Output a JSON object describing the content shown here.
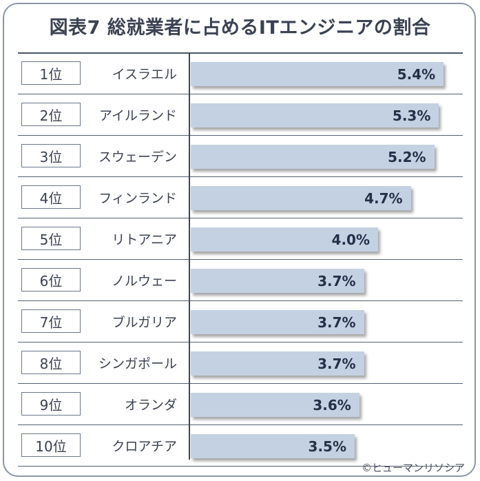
{
  "title": "図表7 総就業者に占めるITエンジニアの割合",
  "credit": "©ヒューマンリソシア",
  "chart_data": {
    "type": "bar",
    "orientation": "horizontal",
    "title": "図表7 総就業者に占めるITエンジニアの割合",
    "unit": "%",
    "xlim": [
      0,
      6.2
    ],
    "grid": false,
    "ranks": [
      "1位",
      "2位",
      "3位",
      "4位",
      "5位",
      "6位",
      "7位",
      "8位",
      "9位",
      "10位"
    ],
    "categories": [
      "イスラエル",
      "アイルランド",
      "スウェーデン",
      "フィンランド",
      "リトアニア",
      "ノルウェー",
      "ブルガリア",
      "シンガポール",
      "オランダ",
      "クロアチア"
    ],
    "values": [
      5.4,
      5.3,
      5.2,
      4.7,
      4.0,
      3.7,
      3.7,
      3.7,
      3.6,
      3.5
    ],
    "labels": [
      "5.4%",
      "5.3%",
      "5.2%",
      "4.7%",
      "4.0%",
      "3.7%",
      "3.7%",
      "3.7%",
      "3.6%",
      "3.5%"
    ],
    "colors": {
      "bar": "#c4d1e2",
      "label": "#243047",
      "rule": "#4a5466"
    }
  }
}
